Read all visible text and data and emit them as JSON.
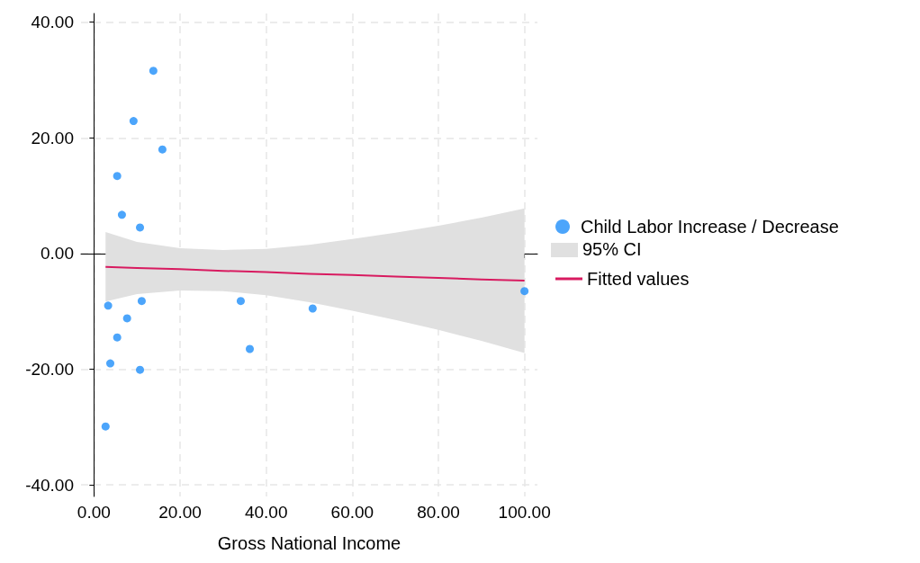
{
  "chart_data": {
    "type": "scatter",
    "xlabel": "Gross National Income",
    "annotations": [
      "95% CI"
    ],
    "xlim": [
      -3,
      103
    ],
    "ylim": [
      -42,
      41.5
    ],
    "xticks": [
      {
        "value": 0,
        "label": "0.00"
      },
      {
        "value": 20,
        "label": "20.00"
      },
      {
        "value": 40,
        "label": "40.00"
      },
      {
        "value": 60,
        "label": "60.00"
      },
      {
        "value": 80,
        "label": "80.00"
      },
      {
        "value": 100,
        "label": "100.00"
      }
    ],
    "yticks": [
      {
        "value": -40,
        "label": "-40.00"
      },
      {
        "value": -20,
        "label": "-20.00"
      },
      {
        "value": 0,
        "label": "0.00"
      },
      {
        "value": 20,
        "label": "20.00"
      },
      {
        "value": 40,
        "label": "40.00"
      }
    ],
    "grid": true,
    "legend": "right",
    "series": [
      {
        "name": "Child Labor Increase / Decrease",
        "marker": "circle",
        "color": "#1f8efa",
        "x": [
          13.8,
          9.2,
          15.9,
          5.4,
          6.5,
          10.7,
          3.3,
          11.1,
          7.7,
          5.4,
          3.8,
          10.7,
          2.7,
          34.1,
          36.2,
          50.8,
          100
        ],
        "values": [
          31.6,
          22.9,
          18.0,
          13.4,
          6.7,
          4.5,
          -9.0,
          -8.2,
          -11.2,
          -14.5,
          -19.0,
          -20.1,
          -29.9,
          -8.2,
          -16.5,
          -9.5,
          -6.5
        ]
      },
      {
        "name": "Fitted values",
        "type": "line",
        "marker": "none",
        "color": "#d81b60",
        "line_style": "solid",
        "x": [
          2.7,
          10,
          20,
          30,
          40,
          50,
          60,
          70,
          80,
          90,
          100
        ],
        "values": [
          -2.3,
          -2.5,
          -2.7,
          -3.0,
          -3.2,
          -3.5,
          -3.7,
          -4.0,
          -4.2,
          -4.5,
          -4.7
        ],
        "lower": [
          -8.3,
          -7.0,
          -6.4,
          -6.5,
          -7.2,
          -8.4,
          -9.9,
          -11.5,
          -13.2,
          -15.1,
          -17.2
        ],
        "upper": [
          3.7,
          2.0,
          0.9,
          0.6,
          0.8,
          1.5,
          2.5,
          3.6,
          4.8,
          6.2,
          7.8
        ]
      }
    ]
  }
}
